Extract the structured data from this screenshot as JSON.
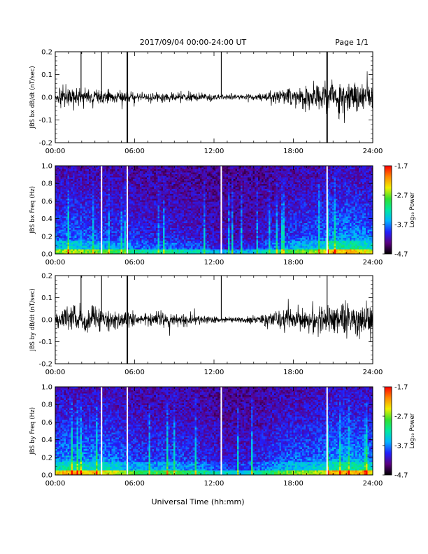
{
  "header": {
    "title": "2017/09/04  00:00-24:00 UT",
    "page": "Page 1/1"
  },
  "footer": {
    "xlabel": "Universal Time (hh:mm)"
  },
  "colorbar": {
    "label": "Log₁₀ Power",
    "ticks": [
      "-1.7",
      "-2.7",
      "-3.7",
      "-4.7"
    ],
    "range": [
      -4.7,
      -1.7
    ],
    "colors": [
      "#000000",
      "#5a0080",
      "#2020ff",
      "#00b4ff",
      "#00e8a0",
      "#30e030",
      "#f0f000",
      "#ff8800",
      "#ff0000"
    ]
  },
  "chart_data": [
    {
      "type": "line",
      "ylabel": "JBS bx dB/dt (nT/sec)",
      "xlim": [
        0,
        24
      ],
      "ylim": [
        -0.2,
        0.2
      ],
      "xticks": [
        "00:00",
        "06:00",
        "12:00",
        "18:00",
        "24:00"
      ],
      "yticks": [
        "0.2",
        "0.1",
        "0.0",
        "-0.1",
        "-0.2"
      ],
      "amplitude_profile_hours": [
        0,
        1,
        2,
        3,
        4,
        5,
        6,
        7,
        8,
        9,
        10,
        11,
        12,
        13,
        14,
        15,
        16,
        17,
        18,
        19,
        20,
        21,
        22,
        23,
        24
      ],
      "amplitude_profile_values": [
        0.03,
        0.045,
        0.04,
        0.03,
        0.03,
        0.025,
        0.02,
        0.02,
        0.02,
        0.018,
        0.02,
        0.015,
        0.01,
        0.01,
        0.01,
        0.012,
        0.02,
        0.03,
        0.045,
        0.04,
        0.05,
        0.06,
        0.065,
        0.06,
        0.05
      ],
      "spikes": [
        {
          "t": 1.95,
          "min": 0.0,
          "max": 0.2
        },
        {
          "t": 3.5,
          "min": 0.0,
          "max": 0.2
        },
        {
          "t": 5.45,
          "min": -0.2,
          "max": 0.2
        },
        {
          "t": 12.55,
          "min": 0.0,
          "max": 0.2
        },
        {
          "t": 20.55,
          "min": -0.2,
          "max": 0.2
        }
      ]
    },
    {
      "type": "heatmap",
      "ylabel": "JBS bx Freq (Hz)",
      "xlim": [
        0,
        24
      ],
      "ylim": [
        0,
        1
      ],
      "xticks": [
        "00:00",
        "06:00",
        "12:00",
        "18:00",
        "24:00"
      ],
      "yticks": [
        "1.0",
        "0.8",
        "0.6",
        "0.4",
        "0.2",
        "0.0"
      ],
      "zlim": [
        -4.7,
        -1.7
      ],
      "activity_hours": [
        0,
        1,
        2,
        3,
        4,
        5,
        6,
        7,
        8,
        9,
        10,
        11,
        12,
        13,
        14,
        15,
        16,
        17,
        18,
        19,
        20,
        21,
        22,
        23,
        24
      ],
      "activity_values": [
        0.6,
        0.7,
        0.65,
        0.6,
        0.55,
        0.5,
        0.45,
        0.4,
        0.4,
        0.4,
        0.35,
        0.3,
        0.25,
        0.2,
        0.2,
        0.25,
        0.35,
        0.45,
        0.55,
        0.6,
        0.65,
        0.8,
        0.85,
        0.8,
        0.7
      ],
      "data_gaps_hours": [
        3.5,
        5.45,
        12.55,
        20.55
      ]
    },
    {
      "type": "line",
      "ylabel": "JBS by dB/dt (nT/sec)",
      "xlim": [
        0,
        24
      ],
      "ylim": [
        -0.2,
        0.2
      ],
      "xticks": [
        "00:00",
        "06:00",
        "12:00",
        "18:00",
        "24:00"
      ],
      "yticks": [
        "0.2",
        "0.1",
        "0.0",
        "-0.1",
        "-0.2"
      ],
      "amplitude_profile_hours": [
        0,
        1,
        2,
        3,
        4,
        5,
        6,
        7,
        8,
        9,
        10,
        11,
        12,
        13,
        14,
        15,
        16,
        17,
        18,
        19,
        20,
        21,
        22,
        23,
        24
      ],
      "amplitude_profile_values": [
        0.04,
        0.055,
        0.05,
        0.05,
        0.045,
        0.035,
        0.025,
        0.025,
        0.03,
        0.025,
        0.025,
        0.02,
        0.012,
        0.01,
        0.012,
        0.015,
        0.025,
        0.04,
        0.05,
        0.045,
        0.055,
        0.065,
        0.07,
        0.065,
        0.055
      ],
      "spikes": [
        {
          "t": 1.95,
          "min": 0.0,
          "max": 0.2
        },
        {
          "t": 3.5,
          "min": 0.0,
          "max": 0.2
        },
        {
          "t": 5.45,
          "min": -0.2,
          "max": 0.2
        },
        {
          "t": 12.55,
          "min": 0.0,
          "max": 0.2
        },
        {
          "t": 20.55,
          "min": 0.0,
          "max": 0.2
        }
      ]
    },
    {
      "type": "heatmap",
      "ylabel": "JBS by Freq (Hz)",
      "xlim": [
        0,
        24
      ],
      "ylim": [
        0,
        1
      ],
      "xticks": [
        "00:00",
        "06:00",
        "12:00",
        "18:00",
        "24:00"
      ],
      "yticks": [
        "1.0",
        "0.8",
        "0.6",
        "0.4",
        "0.2",
        "0.0"
      ],
      "zlim": [
        -4.7,
        -1.7
      ],
      "activity_hours": [
        0,
        1,
        2,
        3,
        4,
        5,
        6,
        7,
        8,
        9,
        10,
        11,
        12,
        13,
        14,
        15,
        16,
        17,
        18,
        19,
        20,
        21,
        22,
        23,
        24
      ],
      "activity_values": [
        0.75,
        0.85,
        0.8,
        0.8,
        0.75,
        0.65,
        0.55,
        0.5,
        0.55,
        0.55,
        0.5,
        0.45,
        0.35,
        0.3,
        0.3,
        0.35,
        0.45,
        0.55,
        0.65,
        0.65,
        0.7,
        0.85,
        0.9,
        0.85,
        0.75
      ],
      "data_gaps_hours": [
        3.5,
        5.45,
        12.55,
        20.55
      ]
    }
  ]
}
